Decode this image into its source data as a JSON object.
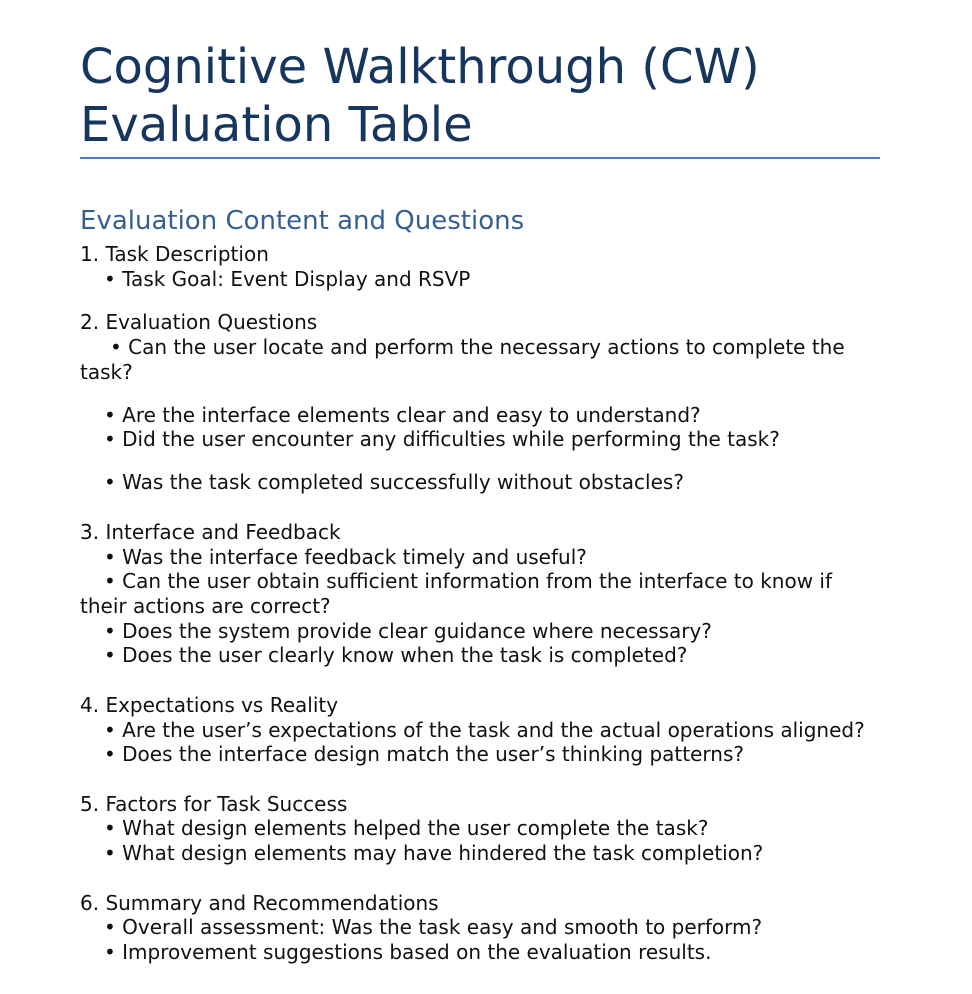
{
  "title_line1": "Cognitive Walkthrough (CW)",
  "title_line2": "Evaluation Table",
  "section_heading": "Evaluation Content and Questions",
  "sections": [
    {
      "heading": "1. Task Description",
      "lines": [
        "• Task Goal: Event Display and RSVP"
      ]
    },
    {
      "heading": "2. Evaluation Questions",
      "lines": [
        "• Can the user locate and perform the necessary actions to complete the",
        "task?",
        "• Are the interface elements clear and easy to understand?",
        "• Did the user encounter any difficulties while performing the task?",
        "• Was the task completed successfully without obstacles?"
      ]
    },
    {
      "heading": "3. Interface and Feedback",
      "lines": [
        "• Was the interface feedback timely and useful?",
        "• Can the user obtain sufficient information from the interface to know if",
        "their actions are correct?",
        "• Does the system provide clear guidance where necessary?",
        "• Does the user clearly know when the task is completed?"
      ]
    },
    {
      "heading": "4. Expectations vs Reality",
      "lines": [
        "• Are the user’s expectations of the task and the actual operations aligned?",
        "• Does the interface design match the user’s thinking patterns?"
      ]
    },
    {
      "heading": "5. Factors for Task Success",
      "lines": [
        "• What design elements helped the user complete the task?",
        "• What design elements may have hindered the task completion?"
      ]
    },
    {
      "heading": "6. Summary and Recommendations",
      "lines": [
        "• Overall assessment: Was the task easy and smooth to perform?",
        "• Improvement suggestions based on the evaluation results."
      ]
    }
  ]
}
